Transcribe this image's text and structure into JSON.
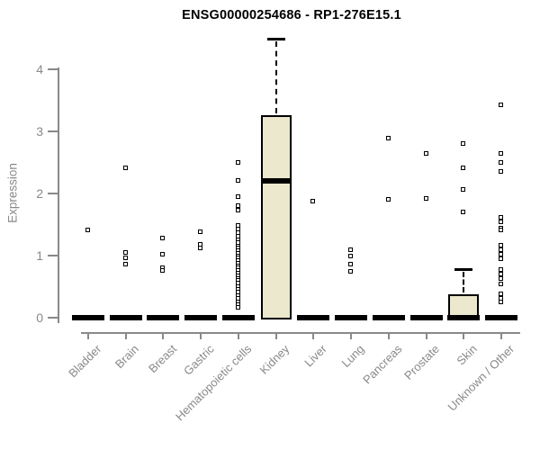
{
  "title": "ENSG00000254686 - RP1-276E15.1",
  "chart_data": {
    "type": "boxplot",
    "title": "ENSG00000254686 - RP1-276E15.1",
    "xlabel": "",
    "ylabel": "Expression",
    "ylim": [
      0,
      4.6
    ],
    "yticks": [
      0,
      1,
      2,
      3,
      4
    ],
    "grid": false,
    "legend": "none",
    "box_fill": "#ece8cd",
    "axis_color": "#898989",
    "data_color": "#000000",
    "categories": [
      {
        "label": "Bladder",
        "box": {
          "q1": 0,
          "median": 0,
          "q3": 0,
          "whisker_low": 0,
          "whisker_high": 0
        },
        "points": [
          1.41
        ]
      },
      {
        "label": "Brain",
        "box": {
          "q1": 0,
          "median": 0,
          "q3": 0,
          "whisker_low": 0,
          "whisker_high": 0
        },
        "points": [
          2.41,
          1.05,
          0.96,
          0.86
        ]
      },
      {
        "label": "Breast",
        "box": {
          "q1": 0,
          "median": 0,
          "q3": 0,
          "whisker_low": 0,
          "whisker_high": 0
        },
        "points": [
          1.28,
          1.02,
          0.8,
          0.76
        ]
      },
      {
        "label": "Gastric",
        "box": {
          "q1": 0,
          "median": 0,
          "q3": 0,
          "whisker_low": 0,
          "whisker_high": 0
        },
        "points": [
          1.37,
          1.18,
          1.12
        ]
      },
      {
        "label": "Hematopoietic cells",
        "box": {
          "q1": 0,
          "median": 0,
          "q3": 0,
          "whisker_low": 0,
          "whisker_high": 0
        },
        "points": [
          2.5,
          2.21,
          1.94,
          1.79,
          1.73,
          1.48,
          1.42,
          1.36,
          1.3,
          1.25,
          1.2,
          1.15,
          1.11,
          1.07,
          1.03,
          0.99,
          0.95,
          0.91,
          0.87,
          0.83,
          0.79,
          0.75,
          0.71,
          0.67,
          0.63,
          0.59,
          0.55,
          0.5,
          0.45,
          0.4,
          0.35,
          0.3,
          0.25,
          0.2,
          0.16
        ]
      },
      {
        "label": "Kidney",
        "box": {
          "q1": 0,
          "median": 2.2,
          "q3": 3.26,
          "whisker_low": 0,
          "whisker_high": 4.5
        },
        "points": []
      },
      {
        "label": "Liver",
        "box": {
          "q1": 0,
          "median": 0,
          "q3": 0,
          "whisker_low": 0,
          "whisker_high": 0
        },
        "points": [
          1.87
        ]
      },
      {
        "label": "Lung",
        "box": {
          "q1": 0,
          "median": 0,
          "q3": 0,
          "whisker_low": 0,
          "whisker_high": 0
        },
        "points": [
          1.09,
          0.99,
          0.86,
          0.74
        ]
      },
      {
        "label": "Pancreas",
        "box": {
          "q1": 0,
          "median": 0,
          "q3": 0,
          "whisker_low": 0,
          "whisker_high": 0
        },
        "points": [
          2.89,
          1.9
        ]
      },
      {
        "label": "Prostate",
        "box": {
          "q1": 0,
          "median": 0,
          "q3": 0,
          "whisker_low": 0,
          "whisker_high": 0
        },
        "points": [
          2.64,
          1.92
        ]
      },
      {
        "label": "Skin",
        "box": {
          "q1": 0,
          "median": 0,
          "q3": 0.37,
          "whisker_low": 0,
          "whisker_high": 0.78
        },
        "points": [
          2.8,
          2.41,
          2.06,
          1.69
        ]
      },
      {
        "label": "Unknown / Other",
        "box": {
          "q1": 0,
          "median": 0,
          "q3": 0,
          "whisker_low": 0,
          "whisker_high": 0
        },
        "points": [
          3.42,
          2.64,
          2.5,
          2.35,
          1.61,
          1.54,
          1.44,
          1.4,
          1.16,
          1.09,
          1.01,
          0.94,
          0.77,
          0.7,
          0.62,
          0.53,
          0.38,
          0.31,
          0.24
        ]
      }
    ]
  }
}
